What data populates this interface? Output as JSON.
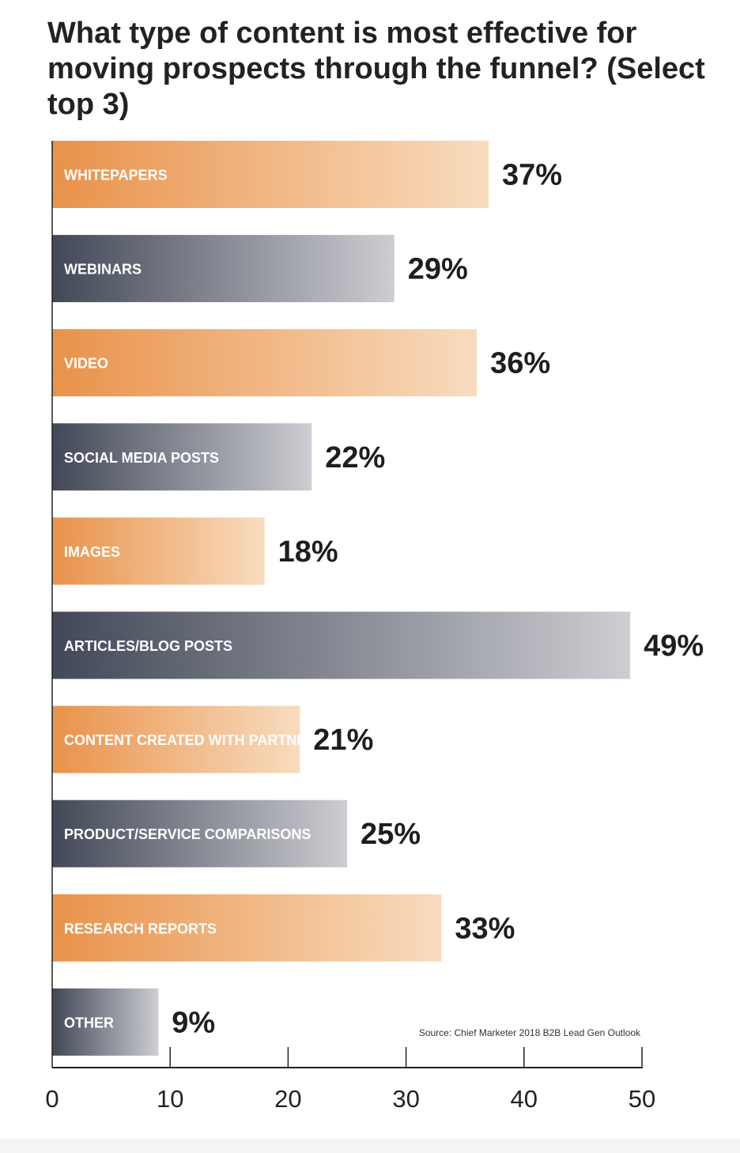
{
  "chart_data": {
    "type": "bar",
    "orientation": "horizontal",
    "title": "What type of content is most effective for moving prospects through the funnel? (Select top 3)",
    "categories": [
      "WHITEPAPERS",
      "WEBINARS",
      "VIDEO",
      "SOCIAL MEDIA POSTS",
      "IMAGES",
      "ARTICLES/BLOG POSTS",
      "CONTENT CREATED WITH PARTNERS",
      "PRODUCT/SERVICE COMPARISONS",
      "RESEARCH REPORTS",
      "OTHER"
    ],
    "values": [
      37,
      29,
      36,
      22,
      18,
      49,
      21,
      25,
      33,
      9
    ],
    "value_labels": [
      "37%",
      "29%",
      "36%",
      "22%",
      "18%",
      "49%",
      "21%",
      "25%",
      "33%",
      "9%"
    ],
    "xlim": [
      0,
      50
    ],
    "x_ticks": [
      "0",
      "10",
      "20",
      "30",
      "40",
      "50"
    ],
    "grid": false,
    "bar_color_pattern": [
      "orange",
      "slate"
    ],
    "colors": {
      "orange": "#e9924a",
      "orange_light": "#f8dcbf",
      "slate": "#424857",
      "slate_light": "#cdcdd2",
      "axis": "#222222"
    },
    "source": "Source: Chief Marketer 2018 B2B Lead Gen Outlook"
  }
}
